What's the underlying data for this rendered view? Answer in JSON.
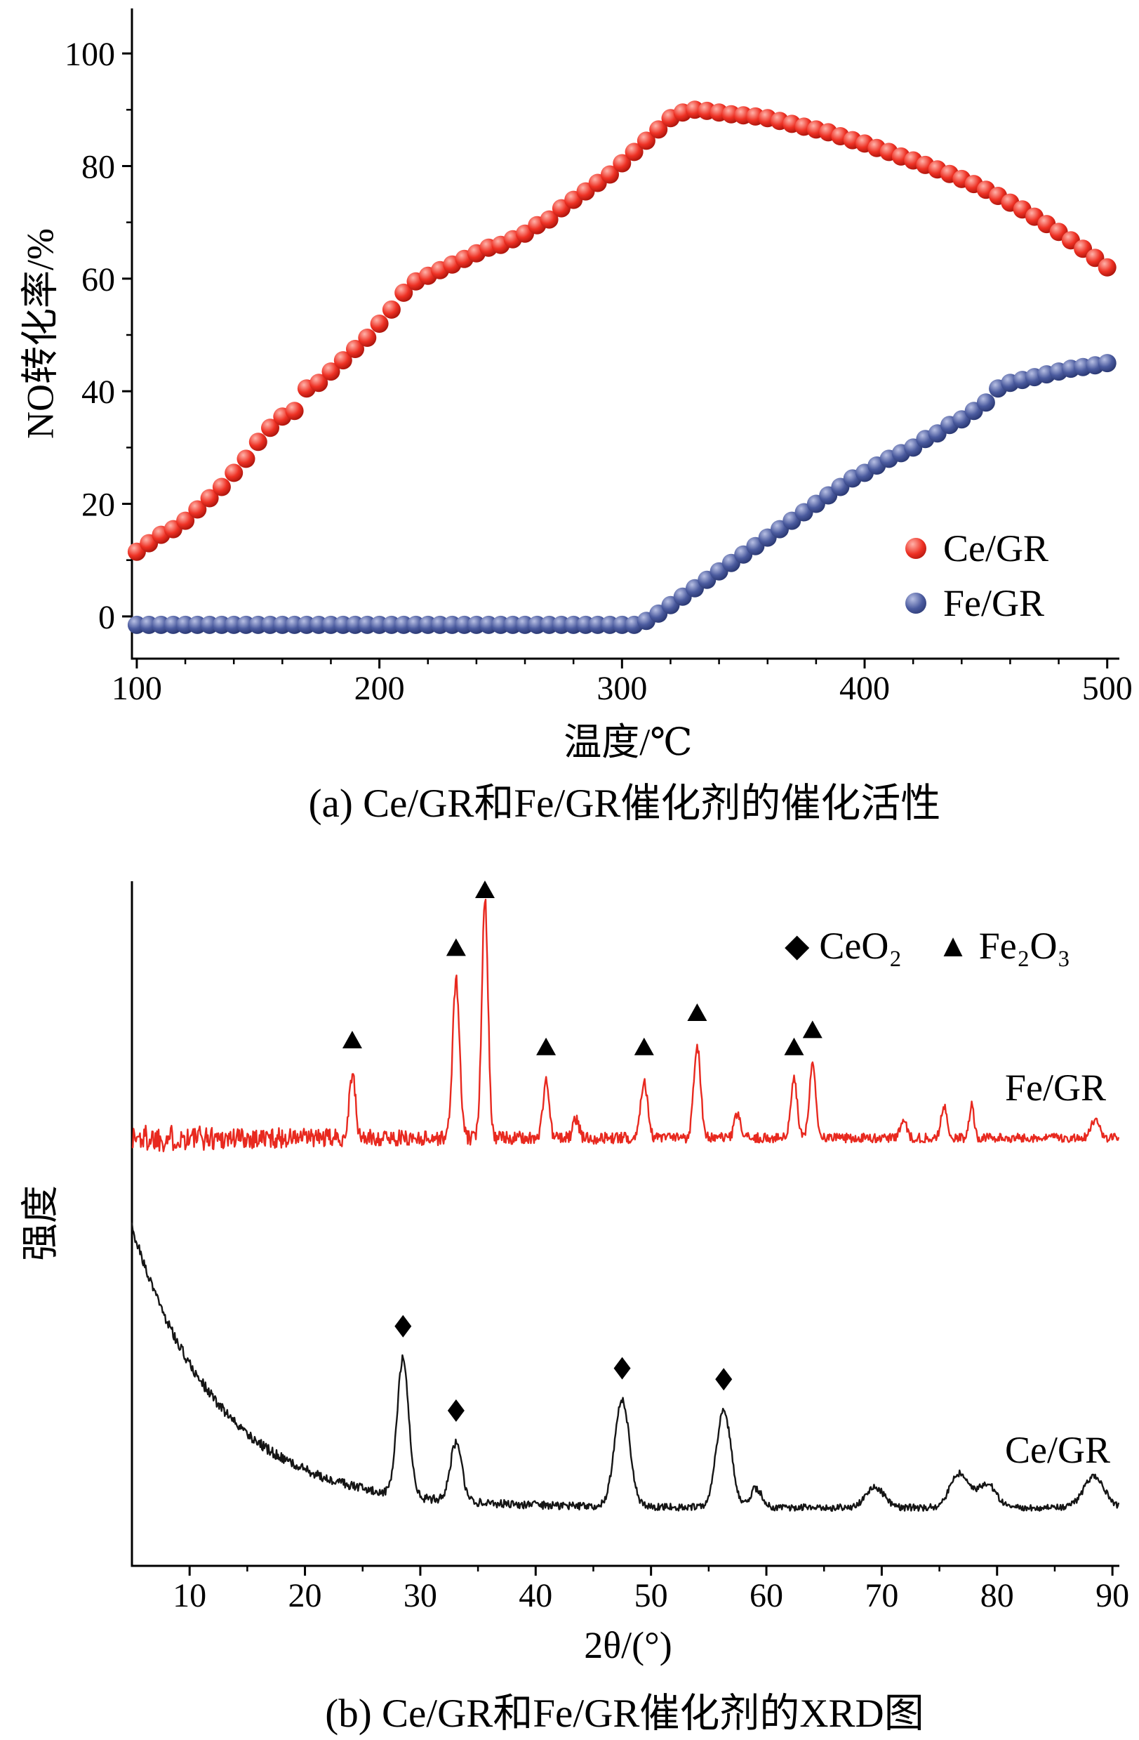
{
  "figure": {
    "background": "#ffffff"
  },
  "chart_data": [
    {
      "id": "activity",
      "type": "scatter",
      "title": "(a) Ce/GR和Fe/GR催化剂的催化活性",
      "xlabel": "温度/℃",
      "ylabel": "NO转化率/%",
      "xlim": [
        98,
        505
      ],
      "ylim": [
        -7.5,
        108
      ],
      "xticks": [
        100,
        200,
        300,
        400,
        500
      ],
      "yticks": [
        0,
        20,
        40,
        60,
        80,
        100
      ],
      "x_minor_step": 20,
      "y_minor_step": 10,
      "marker_step": 5,
      "grid": false,
      "legend_position": "right-bottom",
      "series": [
        {
          "name": "Ce/GR",
          "color": "#ee3124",
          "gradient": [
            "#ffb3aa",
            "#ee3124",
            "#900902"
          ],
          "points": [
            [
              100,
              11.5
            ],
            [
              105,
              13
            ],
            [
              110,
              14.5
            ],
            [
              115,
              15.5
            ],
            [
              120,
              17
            ],
            [
              125,
              19
            ],
            [
              130,
              21
            ],
            [
              135,
              23
            ],
            [
              140,
              25.5
            ],
            [
              145,
              28
            ],
            [
              150,
              31
            ],
            [
              155,
              33.5
            ],
            [
              160,
              35.5
            ],
            [
              165,
              36.5
            ],
            [
              170,
              40.5
            ],
            [
              175,
              41.5
            ],
            [
              180,
              43.5
            ],
            [
              185,
              45.5
            ],
            [
              190,
              47.5
            ],
            [
              195,
              49.5
            ],
            [
              200,
              52
            ],
            [
              205,
              54.5
            ],
            [
              210,
              57.5
            ],
            [
              215,
              59.5
            ],
            [
              220,
              60.5
            ],
            [
              225,
              61.5
            ],
            [
              230,
              62.5
            ],
            [
              235,
              63.5
            ],
            [
              240,
              64.5
            ],
            [
              245,
              65.5
            ],
            [
              250,
              66
            ],
            [
              255,
              67
            ],
            [
              260,
              68
            ],
            [
              265,
              69.5
            ],
            [
              270,
              70.5
            ],
            [
              275,
              72.5
            ],
            [
              280,
              74
            ],
            [
              285,
              75.5
            ],
            [
              290,
              77
            ],
            [
              295,
              78.5
            ],
            [
              300,
              80.5
            ],
            [
              305,
              82.5
            ],
            [
              310,
              84.5
            ],
            [
              315,
              86.5
            ],
            [
              320,
              88.5
            ],
            [
              325,
              89.5
            ],
            [
              330,
              90
            ],
            [
              335,
              89.8
            ],
            [
              340,
              89.5
            ],
            [
              345,
              89.2
            ],
            [
              350,
              89
            ],
            [
              355,
              88.8
            ],
            [
              360,
              88.5
            ],
            [
              365,
              88
            ],
            [
              370,
              87.5
            ],
            [
              375,
              87
            ],
            [
              380,
              86.5
            ],
            [
              385,
              86
            ],
            [
              390,
              85.3
            ],
            [
              395,
              84.6
            ],
            [
              400,
              84
            ],
            [
              405,
              83.2
            ],
            [
              410,
              82.5
            ],
            [
              415,
              81.7
            ],
            [
              420,
              81
            ],
            [
              425,
              80.2
            ],
            [
              430,
              79.4
            ],
            [
              435,
              78.6
            ],
            [
              440,
              77.7
            ],
            [
              445,
              76.8
            ],
            [
              450,
              75.8
            ],
            [
              455,
              74.7
            ],
            [
              460,
              73.5
            ],
            [
              465,
              72.3
            ],
            [
              470,
              71
            ],
            [
              475,
              69.7
            ],
            [
              480,
              68.3
            ],
            [
              485,
              66.8
            ],
            [
              490,
              65.3
            ],
            [
              495,
              63.7
            ],
            [
              500,
              62
            ]
          ]
        },
        {
          "name": "Fe/GR",
          "color": "#4a5a9e",
          "gradient": [
            "#b8c0e4",
            "#4a5a9e",
            "#1d2a60"
          ],
          "points": [
            [
              100,
              -1.5
            ],
            [
              305,
              -1.5
            ],
            [
              310,
              -0.8
            ],
            [
              315,
              0.5
            ],
            [
              320,
              2
            ],
            [
              325,
              3.5
            ],
            [
              330,
              5
            ],
            [
              335,
              6.5
            ],
            [
              340,
              8
            ],
            [
              345,
              9.5
            ],
            [
              350,
              11
            ],
            [
              355,
              12.5
            ],
            [
              360,
              14
            ],
            [
              365,
              15.5
            ],
            [
              370,
              17
            ],
            [
              375,
              18.5
            ],
            [
              380,
              20
            ],
            [
              385,
              21.5
            ],
            [
              390,
              23
            ],
            [
              395,
              24.5
            ],
            [
              400,
              25.5
            ],
            [
              405,
              26.8
            ],
            [
              410,
              28
            ],
            [
              415,
              29
            ],
            [
              420,
              30
            ],
            [
              425,
              31.5
            ],
            [
              430,
              32.5
            ],
            [
              435,
              34
            ],
            [
              440,
              35
            ],
            [
              445,
              36.5
            ],
            [
              450,
              38
            ],
            [
              455,
              40.5
            ],
            [
              460,
              41.5
            ],
            [
              465,
              42
            ],
            [
              470,
              42.5
            ],
            [
              475,
              43
            ],
            [
              480,
              43.5
            ],
            [
              485,
              44
            ],
            [
              490,
              44.3
            ],
            [
              495,
              44.6
            ],
            [
              500,
              45
            ]
          ]
        }
      ]
    },
    {
      "id": "xrd",
      "type": "line",
      "title": "(b) Ce/GR和Fe/GR催化剂的XRD图",
      "xlabel": "2θ/(°)",
      "ylabel": "强度",
      "xlim": [
        5,
        90.6
      ],
      "xticks": [
        10,
        20,
        30,
        40,
        50,
        60,
        70,
        80,
        90
      ],
      "x_minor_step": 5,
      "grid": false,
      "legend": [
        {
          "symbol": "diamond",
          "glyph": "◆",
          "label": "CeO₂",
          "phase_of": "Ce/GR"
        },
        {
          "symbol": "triangle",
          "glyph": "▲",
          "label": "Fe₂O₃",
          "phase_of": "Fe/GR"
        }
      ],
      "series": [
        {
          "name": "Fe/GR",
          "color": "#e8291f",
          "baseline": 0.625,
          "bg_amp": 0,
          "bg_decay": 10,
          "noise_base": 0.006,
          "noise_amp": 0.016,
          "noise_decay": 22,
          "peaks": [
            [
              24.1,
              0.095,
              0.26
            ],
            [
              33.1,
              0.23,
              0.3
            ],
            [
              35.6,
              0.35,
              0.27
            ],
            [
              40.9,
              0.085,
              0.26
            ],
            [
              43.5,
              0.028,
              0.25
            ],
            [
              49.4,
              0.085,
              0.3
            ],
            [
              54.0,
              0.135,
              0.3
            ],
            [
              57.5,
              0.035,
              0.26
            ],
            [
              62.4,
              0.085,
              0.27
            ],
            [
              64.0,
              0.11,
              0.27
            ],
            [
              71.9,
              0.03,
              0.26
            ],
            [
              75.4,
              0.045,
              0.26
            ],
            [
              77.8,
              0.05,
              0.2
            ],
            [
              88.5,
              0.025,
              0.35
            ]
          ],
          "marker_positions": [
            24.1,
            33.1,
            35.6,
            40.9,
            49.4,
            54.0,
            62.4,
            64.0
          ],
          "marker_glyph": "triangle"
        },
        {
          "name": "Ce/GR",
          "color": "#151515",
          "baseline": 0.085,
          "bg_amp": 0.41,
          "bg_decay": 7.5,
          "noise_base": 0.0045,
          "noise_amp": 0.004,
          "noise_decay": 30,
          "peaks": [
            [
              28.5,
              0.2,
              0.5
            ],
            [
              33.1,
              0.085,
              0.5
            ],
            [
              47.5,
              0.155,
              0.65
            ],
            [
              56.3,
              0.14,
              0.65
            ],
            [
              59.1,
              0.028,
              0.5
            ],
            [
              69.4,
              0.03,
              0.8
            ],
            [
              76.7,
              0.05,
              0.8
            ],
            [
              79.1,
              0.035,
              0.8
            ],
            [
              88.4,
              0.045,
              0.9
            ]
          ],
          "marker_positions": [
            28.5,
            33.1,
            47.5,
            56.3
          ],
          "marker_glyph": "diamond"
        }
      ]
    }
  ]
}
